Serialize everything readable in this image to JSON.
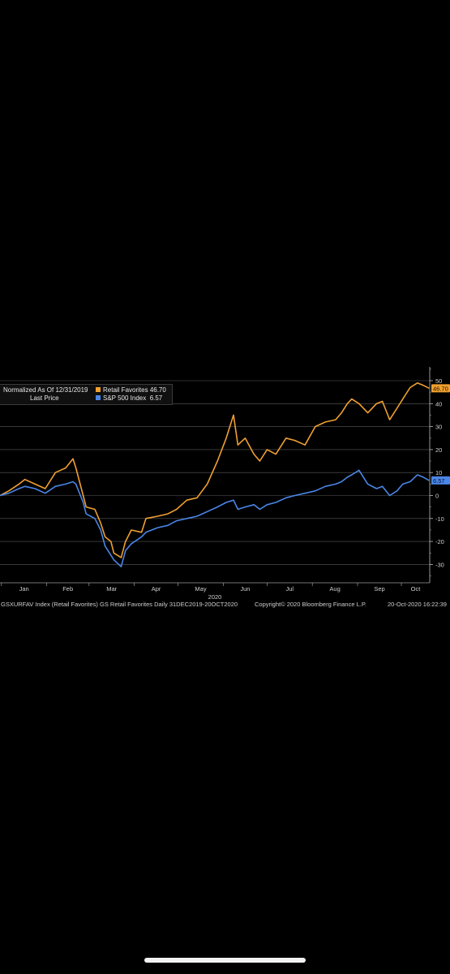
{
  "legend": {
    "line1": "Normalized As Of 12/31/2019",
    "line2": "Last Price",
    "series": [
      {
        "name": "Retail Favorites",
        "value": "46.70",
        "color": "#f0a030"
      },
      {
        "name": "S&P 500 Index",
        "value": "6.57",
        "color": "#4a86e8"
      }
    ]
  },
  "footer": {
    "left": "GSXURFAV Index (Retail Favorites) GS Retail Favorites  Daily 31DEC2019-20OCT2020",
    "middle": "Copyright© 2020 Bloomberg Finance L.P.",
    "right": "20-Oct-2020 16:22:39"
  },
  "chart_data": {
    "type": "line",
    "xlabel": "2020",
    "x_ticks": [
      "Jan",
      "Feb",
      "Mar",
      "Apr",
      "May",
      "Jun",
      "Jul",
      "Aug",
      "Sep",
      "Oct"
    ],
    "x_range": [
      "2019-12-31",
      "2020-10-20"
    ],
    "y_ticks": [
      50,
      40,
      30,
      20,
      10,
      0,
      -10,
      -20,
      -30
    ],
    "ylim": [
      -38,
      55
    ],
    "grid": true,
    "legend_position": "top-left",
    "series": [
      {
        "name": "Retail Favorites",
        "color": "#f0a030",
        "last_value": "46.70",
        "points": [
          [
            "2019-12-31",
            0
          ],
          [
            "2020-01-06",
            2
          ],
          [
            "2020-01-13",
            5
          ],
          [
            "2020-01-17",
            7
          ],
          [
            "2020-01-24",
            5
          ],
          [
            "2020-01-31",
            3
          ],
          [
            "2020-02-07",
            10
          ],
          [
            "2020-02-14",
            12
          ],
          [
            "2020-02-19",
            16
          ],
          [
            "2020-02-21",
            12
          ],
          [
            "2020-02-26",
            0
          ],
          [
            "2020-02-28",
            -5
          ],
          [
            "2020-03-05",
            -6
          ],
          [
            "2020-03-09",
            -12
          ],
          [
            "2020-03-12",
            -18
          ],
          [
            "2020-03-16",
            -20
          ],
          [
            "2020-03-18",
            -25
          ],
          [
            "2020-03-23",
            -27
          ],
          [
            "2020-03-26",
            -20
          ],
          [
            "2020-03-30",
            -15
          ],
          [
            "2020-04-06",
            -16
          ],
          [
            "2020-04-09",
            -10
          ],
          [
            "2020-04-17",
            -9
          ],
          [
            "2020-04-24",
            -8
          ],
          [
            "2020-04-30",
            -6
          ],
          [
            "2020-05-07",
            -2
          ],
          [
            "2020-05-14",
            -1
          ],
          [
            "2020-05-21",
            5
          ],
          [
            "2020-05-28",
            15
          ],
          [
            "2020-06-03",
            25
          ],
          [
            "2020-06-08",
            35
          ],
          [
            "2020-06-11",
            22
          ],
          [
            "2020-06-16",
            25
          ],
          [
            "2020-06-22",
            18
          ],
          [
            "2020-06-26",
            15
          ],
          [
            "2020-07-01",
            20
          ],
          [
            "2020-07-07",
            18
          ],
          [
            "2020-07-14",
            25
          ],
          [
            "2020-07-20",
            24
          ],
          [
            "2020-07-27",
            22
          ],
          [
            "2020-08-03",
            30
          ],
          [
            "2020-08-10",
            32
          ],
          [
            "2020-08-17",
            33
          ],
          [
            "2020-08-21",
            36
          ],
          [
            "2020-08-25",
            40
          ],
          [
            "2020-08-28",
            42
          ],
          [
            "2020-09-02",
            40
          ],
          [
            "2020-09-08",
            36
          ],
          [
            "2020-09-14",
            40
          ],
          [
            "2020-09-18",
            41
          ],
          [
            "2020-09-23",
            33
          ],
          [
            "2020-09-28",
            38
          ],
          [
            "2020-10-02",
            42
          ],
          [
            "2020-10-07",
            47
          ],
          [
            "2020-10-12",
            49
          ],
          [
            "2020-10-16",
            48
          ],
          [
            "2020-10-20",
            46.7
          ]
        ]
      },
      {
        "name": "S&P 500 Index",
        "color": "#4a86e8",
        "last_value": "6.57",
        "points": [
          [
            "2019-12-31",
            0
          ],
          [
            "2020-01-06",
            1
          ],
          [
            "2020-01-13",
            3
          ],
          [
            "2020-01-17",
            4
          ],
          [
            "2020-01-24",
            3
          ],
          [
            "2020-01-31",
            1
          ],
          [
            "2020-02-07",
            4
          ],
          [
            "2020-02-14",
            5
          ],
          [
            "2020-02-19",
            6
          ],
          [
            "2020-02-21",
            5
          ],
          [
            "2020-02-26",
            -3
          ],
          [
            "2020-02-28",
            -8
          ],
          [
            "2020-03-05",
            -10
          ],
          [
            "2020-03-09",
            -15
          ],
          [
            "2020-03-12",
            -22
          ],
          [
            "2020-03-16",
            -26
          ],
          [
            "2020-03-18",
            -28
          ],
          [
            "2020-03-23",
            -31
          ],
          [
            "2020-03-26",
            -24
          ],
          [
            "2020-03-30",
            -21
          ],
          [
            "2020-04-06",
            -18
          ],
          [
            "2020-04-09",
            -16
          ],
          [
            "2020-04-17",
            -14
          ],
          [
            "2020-04-24",
            -13
          ],
          [
            "2020-04-30",
            -11
          ],
          [
            "2020-05-07",
            -10
          ],
          [
            "2020-05-14",
            -9
          ],
          [
            "2020-05-21",
            -7
          ],
          [
            "2020-05-28",
            -5
          ],
          [
            "2020-06-03",
            -3
          ],
          [
            "2020-06-08",
            -2
          ],
          [
            "2020-06-11",
            -6
          ],
          [
            "2020-06-16",
            -5
          ],
          [
            "2020-06-22",
            -4
          ],
          [
            "2020-06-26",
            -6
          ],
          [
            "2020-07-01",
            -4
          ],
          [
            "2020-07-07",
            -3
          ],
          [
            "2020-07-14",
            -1
          ],
          [
            "2020-07-20",
            0
          ],
          [
            "2020-07-27",
            1
          ],
          [
            "2020-08-03",
            2
          ],
          [
            "2020-08-10",
            4
          ],
          [
            "2020-08-17",
            5
          ],
          [
            "2020-08-21",
            6
          ],
          [
            "2020-08-25",
            8
          ],
          [
            "2020-08-28",
            9
          ],
          [
            "2020-09-02",
            11
          ],
          [
            "2020-09-08",
            5
          ],
          [
            "2020-09-14",
            3
          ],
          [
            "2020-09-18",
            4
          ],
          [
            "2020-09-23",
            0
          ],
          [
            "2020-09-28",
            2
          ],
          [
            "2020-10-02",
            5
          ],
          [
            "2020-10-07",
            6
          ],
          [
            "2020-10-12",
            9
          ],
          [
            "2020-10-16",
            8
          ],
          [
            "2020-10-20",
            6.57
          ]
        ]
      }
    ]
  }
}
